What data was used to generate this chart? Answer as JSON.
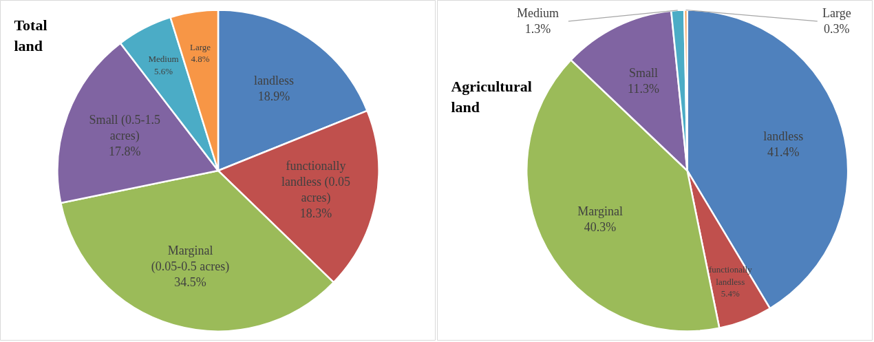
{
  "chart_data": [
    {
      "type": "pie",
      "title": "Total land",
      "categories": [
        "landless",
        "functionally landless (0.05 acres)",
        "Marginal (0.05-0.5 acres)",
        "Small (0.5-1.5 acres)",
        "Medium",
        "Large"
      ],
      "values": [
        18.9,
        18.3,
        34.5,
        17.8,
        5.6,
        4.8
      ],
      "value_labels": [
        "18.9%",
        "18.3%",
        "34.5%",
        "17.8%",
        "5.6%",
        "4.8%"
      ],
      "colors": [
        "#4f81bd",
        "#c0504d",
        "#9bbb59",
        "#8064a2",
        "#4bacc6",
        "#f79646"
      ]
    },
    {
      "type": "pie",
      "title": "Agricultural land",
      "categories": [
        "landless",
        "functionally landless",
        "Marginal",
        "Small",
        "Medium",
        "Large"
      ],
      "values": [
        41.4,
        5.4,
        40.3,
        11.3,
        1.3,
        0.3
      ],
      "value_labels": [
        "41.4%",
        "5.4%",
        "40.3%",
        "11.3%",
        "1.3%",
        "0.3%"
      ],
      "colors": [
        "#4f81bd",
        "#c0504d",
        "#9bbb59",
        "#8064a2",
        "#4bacc6",
        "#f79646"
      ]
    }
  ]
}
